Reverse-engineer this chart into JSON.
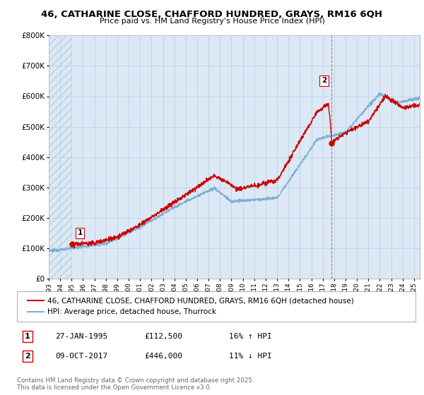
{
  "title_line1": "46, CATHARINE CLOSE, CHAFFORD HUNDRED, GRAYS, RM16 6QH",
  "title_line2": "Price paid vs. HM Land Registry's House Price Index (HPI)",
  "background_color": "#ffffff",
  "plot_bg_color": "#dce8f5",
  "hatch_color": "#b8cfe0",
  "grid_color": "#b8cfe0",
  "red_line_color": "#cc0000",
  "blue_line_color": "#7aafd4",
  "vline_color": "#dd6666",
  "legend_label_red": "46, CATHARINE CLOSE, CHAFFORD HUNDRED, GRAYS, RM16 6QH (detached house)",
  "legend_label_blue": "HPI: Average price, detached house, Thurrock",
  "point1_x": 1995.07,
  "point1_y": 112500,
  "point1_label": "1",
  "point2_x": 2017.77,
  "point2_y": 446000,
  "point2_label": "2",
  "vline_x": 2017.77,
  "annotation1_date": "27-JAN-1995",
  "annotation1_price": "£112,500",
  "annotation1_hpi": "16% ↑ HPI",
  "annotation2_date": "09-OCT-2017",
  "annotation2_price": "£446,000",
  "annotation2_hpi": "11% ↓ HPI",
  "footer": "Contains HM Land Registry data © Crown copyright and database right 2025.\nThis data is licensed under the Open Government Licence v3.0.",
  "ylim": [
    0,
    800000
  ],
  "yticks": [
    0,
    100000,
    200000,
    300000,
    400000,
    500000,
    600000,
    700000,
    800000
  ],
  "xlim_start": 1993.0,
  "xlim_end": 2025.5,
  "hatch_end": 1995.07
}
